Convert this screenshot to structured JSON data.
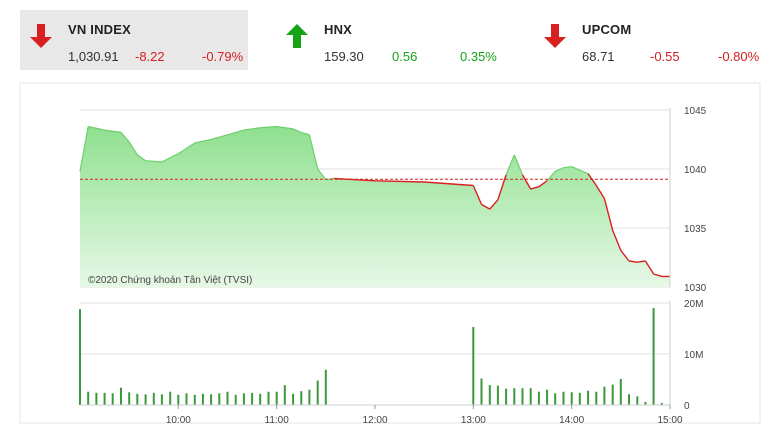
{
  "tickers": [
    {
      "name": "VN INDEX",
      "last": "1,030.91",
      "change": "-8.22",
      "pct": "-0.79%",
      "direction": "down",
      "active": true
    },
    {
      "name": "HNX",
      "last": "159.30",
      "change": "0.56",
      "pct": "0.35%",
      "direction": "up",
      "active": false
    },
    {
      "name": "UPCOM",
      "last": "68.71",
      "change": "-0.55",
      "pct": "-0.80%",
      "direction": "down",
      "active": false
    }
  ],
  "colors": {
    "up": "#16a316",
    "down": "#d92020",
    "area": "#8fe08f",
    "line": "#d92020",
    "volume": "#3a9a3a"
  },
  "copyright": "©2020 Chứng khoán Tân Việt (TVSI)",
  "chart_data": [
    {
      "type": "area",
      "title": "",
      "reference": 1039.13,
      "ylim": [
        1030,
        1045
      ],
      "yticks": [
        "1045",
        "1040",
        "1035",
        "1030"
      ],
      "yticks_values": [
        1045,
        1040,
        1035,
        1030
      ],
      "x": [
        9.0,
        9.083,
        9.25,
        9.417,
        9.5,
        9.583,
        9.667,
        9.833,
        10.0,
        10.167,
        10.333,
        10.5,
        10.667,
        10.833,
        11.0,
        11.167,
        11.25,
        11.333,
        11.417,
        11.5,
        11.583,
        12.0,
        12.5,
        13.0,
        13.083,
        13.167,
        13.25,
        13.333,
        13.417,
        13.5,
        13.583,
        13.667,
        13.75,
        13.833,
        13.917,
        14.0,
        14.083,
        14.167,
        14.25,
        14.333,
        14.417,
        14.5,
        14.583,
        14.667,
        14.75,
        14.833,
        14.917,
        15.0
      ],
      "values": [
        1039.8,
        1043.6,
        1043.3,
        1043.1,
        1042.3,
        1041.2,
        1040.7,
        1040.6,
        1041.3,
        1042.2,
        1042.5,
        1042.9,
        1043.3,
        1043.5,
        1043.6,
        1043.4,
        1043.1,
        1042.9,
        1040.0,
        1039.1,
        1039.2,
        1039.0,
        1038.9,
        1038.6,
        1037.0,
        1036.6,
        1037.4,
        1039.5,
        1041.2,
        1039.5,
        1038.3,
        1038.5,
        1039.0,
        1039.8,
        1040.1,
        1040.2,
        1039.9,
        1039.6,
        1038.6,
        1037.5,
        1034.8,
        1033.1,
        1032.2,
        1032.1,
        1032.2,
        1031.1,
        1030.9,
        1030.9
      ],
      "xticks": [
        "10:00",
        "11:00",
        "12:00",
        "13:00",
        "14:00",
        "15:00"
      ],
      "xticks_values": [
        10,
        11,
        12,
        13,
        14,
        15
      ],
      "grid": true
    },
    {
      "type": "bar",
      "title": "",
      "ylim": [
        0,
        20
      ],
      "yticks": [
        "20M",
        "10M",
        "0"
      ],
      "yticks_values": [
        20,
        10,
        0
      ],
      "x": [
        9.0,
        9.083,
        9.167,
        9.25,
        9.333,
        9.417,
        9.5,
        9.583,
        9.667,
        9.75,
        9.833,
        9.917,
        10.0,
        10.083,
        10.167,
        10.25,
        10.333,
        10.417,
        10.5,
        10.583,
        10.667,
        10.75,
        10.833,
        10.917,
        11.0,
        11.083,
        11.167,
        11.25,
        11.333,
        11.417,
        11.5,
        13.0,
        13.083,
        13.167,
        13.25,
        13.333,
        13.417,
        13.5,
        13.583,
        13.667,
        13.75,
        13.833,
        13.917,
        14.0,
        14.083,
        14.167,
        14.25,
        14.333,
        14.417,
        14.5,
        14.583,
        14.667,
        14.75,
        14.833,
        14.917
      ],
      "values": [
        18.8,
        2.6,
        2.4,
        2.4,
        2.3,
        3.4,
        2.5,
        2.2,
        2.1,
        2.4,
        2.1,
        2.6,
        2.0,
        2.3,
        2.0,
        2.2,
        2.1,
        2.3,
        2.6,
        2.0,
        2.3,
        2.4,
        2.2,
        2.6,
        2.6,
        3.9,
        2.2,
        2.7,
        3.0,
        4.8,
        6.9,
        15.3,
        5.2,
        3.9,
        3.8,
        3.2,
        3.3,
        3.3,
        3.3,
        2.6,
        3.0,
        2.3,
        2.6,
        2.5,
        2.4,
        2.8,
        2.6,
        3.6,
        4.0,
        5.1,
        2.1,
        1.7,
        0.6,
        19.0,
        0.4
      ]
    }
  ]
}
